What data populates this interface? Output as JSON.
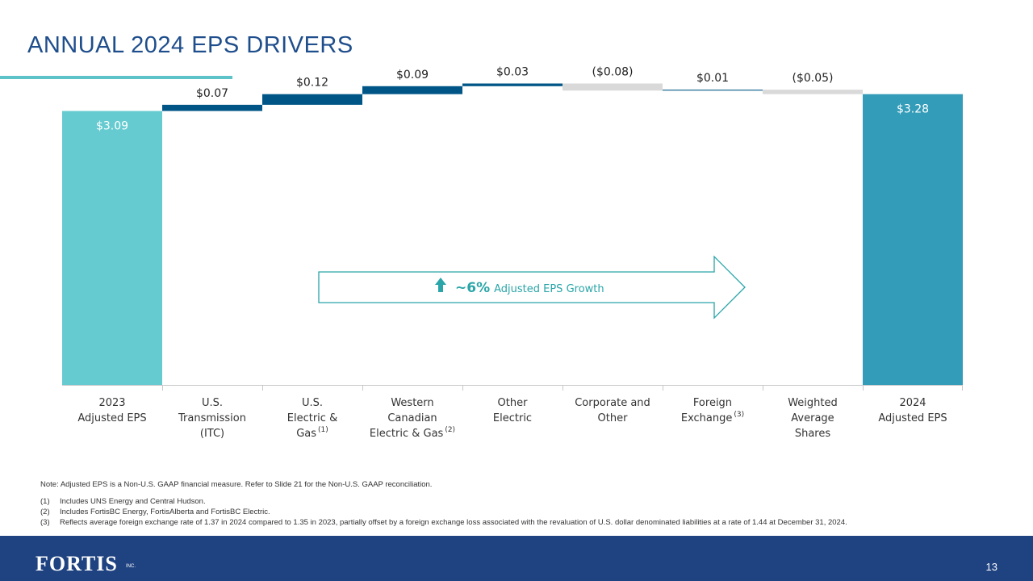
{
  "slide": {
    "title": "ANNUAL 2024 EPS DRIVERS",
    "page_number": "13",
    "logo_text": "FORTIS",
    "logo_suffix": "INC."
  },
  "colors": {
    "title": "#1f4e8c",
    "start_bar": "#66cbd0",
    "end_bar": "#339cb8",
    "increase": "#005587",
    "decrease": "#d9d9d9",
    "footer": "#1f4381",
    "accent": "#2aa5a8"
  },
  "callout": {
    "icon": "up-arrow-icon",
    "pct": "~6%",
    "text": "Adjusted EPS Growth"
  },
  "chart_data": {
    "type": "waterfall",
    "ylim": [
      0,
      3.45
    ],
    "categories": [
      {
        "lines": [
          "2023",
          "Adjusted EPS"
        ],
        "sup": ""
      },
      {
        "lines": [
          "U.S.",
          "Transmission",
          "(ITC)"
        ],
        "sup": ""
      },
      {
        "lines": [
          "U.S.",
          "Electric &",
          "Gas"
        ],
        "sup": "(1)"
      },
      {
        "lines": [
          "Western",
          "Canadian",
          "Electric & Gas"
        ],
        "sup": "(2)"
      },
      {
        "lines": [
          "Other",
          "Electric"
        ],
        "sup": ""
      },
      {
        "lines": [
          "Corporate and",
          "Other"
        ],
        "sup": ""
      },
      {
        "lines": [
          "Foreign",
          "Exchange"
        ],
        "sup": "(3)"
      },
      {
        "lines": [
          "Weighted",
          "Average",
          "Shares"
        ],
        "sup": ""
      },
      {
        "lines": [
          "2024",
          "Adjusted EPS"
        ],
        "sup": ""
      }
    ],
    "steps": [
      {
        "kind": "total",
        "value": 3.09,
        "label": "$3.09"
      },
      {
        "kind": "delta",
        "value": 0.07,
        "label": "$0.07"
      },
      {
        "kind": "delta",
        "value": 0.12,
        "label": "$0.12"
      },
      {
        "kind": "delta",
        "value": 0.09,
        "label": "$0.09"
      },
      {
        "kind": "delta",
        "value": 0.03,
        "label": "$0.03"
      },
      {
        "kind": "delta",
        "value": -0.08,
        "label": "($0.08)"
      },
      {
        "kind": "delta",
        "value": 0.01,
        "label": "$0.01"
      },
      {
        "kind": "delta",
        "value": -0.05,
        "label": "($0.05)"
      },
      {
        "kind": "total",
        "value": 3.28,
        "label": "$3.28"
      }
    ]
  },
  "notes": {
    "note": "Note: Adjusted EPS is a Non-U.S. GAAP financial measure. Refer to Slide 21 for the Non-U.S. GAAP reconciliation.",
    "items": [
      {
        "num": "(1)",
        "text": "Includes UNS Energy and Central Hudson."
      },
      {
        "num": "(2)",
        "text": "Includes FortisBC Energy, FortisAlberta and FortisBC Electric."
      },
      {
        "num": "(3)",
        "text": "Reflects average foreign exchange rate of 1.37 in 2024 compared to 1.35 in 2023, partially offset by a foreign exchange loss associated with the revaluation of U.S. dollar denominated liabilities at a rate of 1.44 at December 31, 2024."
      }
    ]
  }
}
